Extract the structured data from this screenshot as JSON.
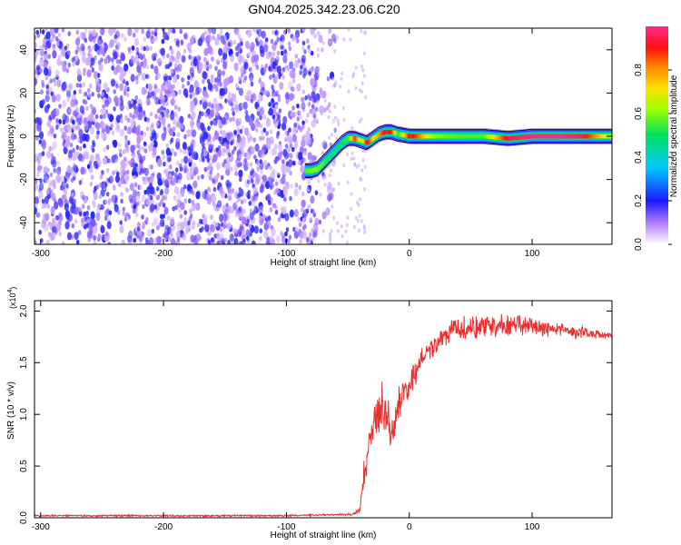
{
  "title": "GN04.2025.342.23.06.C20",
  "colors": {
    "snr_line": "#e8312f",
    "spectrogram_noise": "#7a2ee0",
    "background": "#ffffff"
  },
  "chart_data": [
    {
      "type": "heatmap",
      "title": "GN04.2025.342.23.06.C20",
      "xlabel": "Height of straight line (km)",
      "ylabel": "Frequency (Hz)",
      "xlim": [
        -305,
        165
      ],
      "ylim": [
        -50,
        50
      ],
      "x_ticks": [
        -300,
        -200,
        -100,
        0,
        100
      ],
      "y_ticks": [
        -40,
        -20,
        0,
        20,
        40
      ],
      "colorbar": {
        "label": "Normalized spectral amplitude",
        "range": [
          0,
          1
        ],
        "ticks": [
          0.0,
          0.2,
          0.4,
          0.6,
          0.8
        ]
      },
      "noise_region_x": [
        -305,
        -70
      ],
      "signal_ridge": {
        "x": [
          -85,
          -80,
          -75,
          -70,
          -65,
          -60,
          -55,
          -50,
          -45,
          -40,
          -35,
          -30,
          -25,
          -20,
          -15,
          -10,
          0,
          20,
          40,
          60,
          80,
          100,
          120,
          140,
          165
        ],
        "y": [
          -16,
          -16,
          -15,
          -12,
          -9,
          -6,
          -3,
          -1,
          -1,
          -2,
          -3,
          -1,
          1,
          2,
          2,
          1,
          0,
          0,
          0,
          0,
          -1,
          0,
          0,
          0,
          0
        ],
        "amplitude": [
          0.55,
          0.6,
          0.6,
          0.55,
          0.45,
          0.45,
          0.5,
          0.55,
          0.9,
          0.6,
          0.95,
          0.7,
          0.8,
          0.95,
          0.9,
          0.5,
          0.95,
          0.6,
          0.55,
          0.55,
          0.95,
          1.0,
          1.0,
          0.95,
          0.6
        ]
      }
    },
    {
      "type": "line",
      "xlabel": "Height of straight line (km)",
      "ylabel": "SNR (10 * v/v)",
      "y_multiplier": "(x10",
      "y_multiplier_exp": "4",
      "y_multiplier_close": ")",
      "xlim": [
        -305,
        165
      ],
      "ylim": [
        0,
        2.1
      ],
      "x_ticks": [
        -300,
        -200,
        -100,
        0,
        100
      ],
      "y_ticks": [
        0.0,
        0.5,
        1.0,
        1.5,
        2.0
      ],
      "y_tick_labels": [
        "0.0",
        "0.5",
        "1.0",
        "1.5",
        "2.0"
      ],
      "series": [
        {
          "x": [
            -305,
            -200,
            -100,
            -60,
            -50,
            -45,
            -40,
            -38,
            -35,
            -32,
            -30,
            -28,
            -25,
            -22,
            -20,
            -18,
            -15,
            -12,
            -10,
            -5,
            0,
            5,
            10,
            15,
            20,
            25,
            30,
            40,
            50,
            60,
            70,
            80,
            90,
            100,
            110,
            120,
            130,
            140,
            150,
            165
          ],
          "values": [
            0.02,
            0.02,
            0.02,
            0.03,
            0.03,
            0.04,
            0.08,
            0.3,
            0.55,
            0.7,
            0.85,
            0.95,
            1.05,
            1.1,
            1.0,
            1.0,
            0.85,
            0.9,
            1.05,
            1.2,
            1.3,
            1.4,
            1.55,
            1.6,
            1.65,
            1.7,
            1.78,
            1.82,
            1.84,
            1.85,
            1.84,
            1.85,
            1.86,
            1.84,
            1.83,
            1.82,
            1.8,
            1.8,
            1.78,
            1.76
          ],
          "noise": [
            0.01,
            0.01,
            0.01,
            0.01,
            0.01,
            0.02,
            0.04,
            0.15,
            0.2,
            0.2,
            0.25,
            0.25,
            0.25,
            0.25,
            0.25,
            0.25,
            0.2,
            0.2,
            0.2,
            0.2,
            0.15,
            0.15,
            0.15,
            0.12,
            0.12,
            0.12,
            0.12,
            0.12,
            0.14,
            0.14,
            0.14,
            0.14,
            0.12,
            0.1,
            0.09,
            0.08,
            0.07,
            0.07,
            0.06,
            0.05
          ]
        }
      ]
    }
  ]
}
